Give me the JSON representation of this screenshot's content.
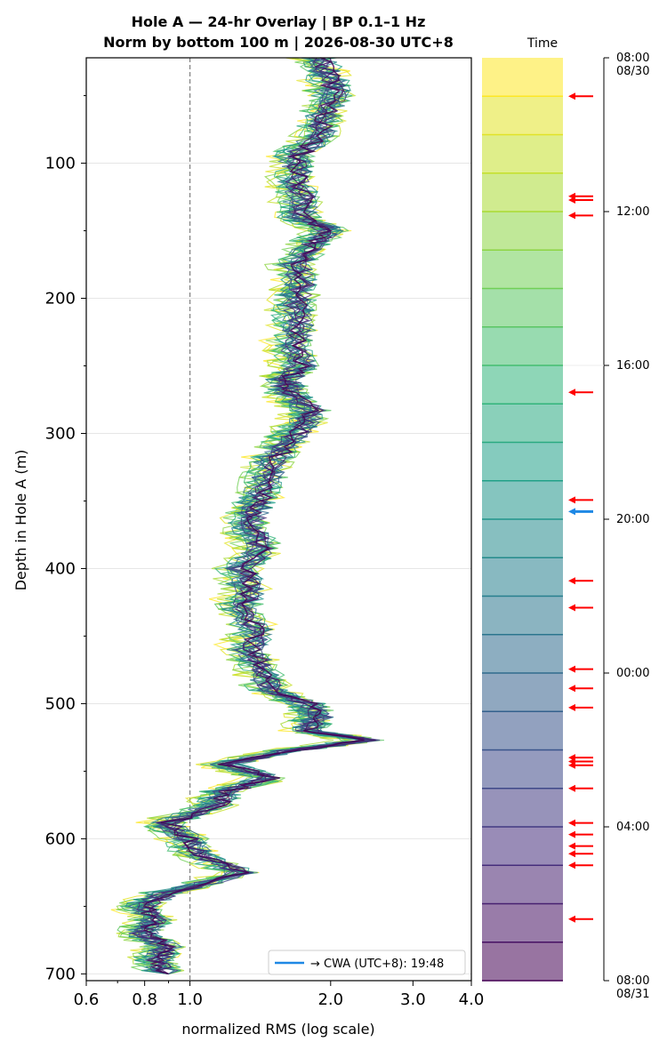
{
  "chart_data": [
    {
      "type": "line",
      "title": "Hole A — 24-hr Overlay  |  BP 0.1–1 Hz",
      "subtitle": "Norm by bottom 100 m  |  2026-08-30 UTC+8",
      "xlabel": "normalized RMS  (log scale)",
      "ylabel": "Depth in Hole A (m)",
      "x_scale": "log",
      "xlim": [
        0.6,
        4.0
      ],
      "ylim": [
        705,
        22
      ],
      "y_inverted": true,
      "x_ticks": [
        "0.6",
        "0.8",
        "1.0",
        "2.0",
        "3.0",
        "4.0"
      ],
      "x_tick_values": [
        0.6,
        0.8,
        1.0,
        2.0,
        3.0,
        4.0
      ],
      "y_ticks": [
        "100",
        "200",
        "300",
        "400",
        "500",
        "600",
        "700"
      ],
      "y_tick_values": [
        100,
        200,
        300,
        400,
        500,
        600,
        700
      ],
      "grid": "horizontal",
      "reference_line": {
        "x": 1.0,
        "style": "dashed",
        "color": "#808080"
      },
      "legend": {
        "placement": "bottom-right",
        "entries": [
          {
            "label": "→ CWA (UTC+8): 19:48",
            "color": "#1e88e5"
          }
        ]
      },
      "series_count": 24,
      "colormap": "viridis",
      "depth_samples": [
        22,
        35,
        50,
        65,
        80,
        95,
        110,
        125,
        140,
        150,
        160,
        175,
        190,
        205,
        220,
        235,
        250,
        260,
        270,
        283,
        295,
        310,
        325,
        340,
        355,
        370,
        385,
        400,
        415,
        430,
        445,
        460,
        475,
        490,
        500,
        510,
        520,
        527,
        535,
        545,
        555,
        565,
        575,
        588,
        600,
        612,
        625,
        640,
        650,
        660,
        670,
        680,
        690,
        700
      ],
      "mean_profile": [
        1.9,
        2.0,
        2.05,
        1.95,
        1.9,
        1.7,
        1.7,
        1.75,
        1.75,
        2.0,
        1.85,
        1.7,
        1.75,
        1.7,
        1.72,
        1.68,
        1.75,
        1.62,
        1.65,
        1.85,
        1.75,
        1.6,
        1.5,
        1.45,
        1.4,
        1.35,
        1.45,
        1.3,
        1.35,
        1.3,
        1.4,
        1.35,
        1.45,
        1.5,
        1.8,
        1.9,
        1.8,
        2.4,
        1.6,
        1.2,
        1.5,
        1.2,
        1.15,
        0.9,
        1.0,
        1.05,
        1.3,
        0.9,
        0.8,
        0.85,
        0.8,
        0.9,
        0.85,
        0.9
      ]
    },
    {
      "type": "heatmap",
      "title": "Time",
      "colormap": "viridis",
      "bands": 24,
      "time_ticks": [
        "08:00\n08/30",
        "12:00",
        "16:00",
        "20:00",
        "00:00",
        "04:00",
        "08:00\n08/31"
      ],
      "time_tick_hours": [
        0,
        4,
        8,
        12,
        16,
        20,
        24
      ],
      "event_arrows_hours": [
        1.0,
        3.6,
        3.7,
        4.1,
        8.7,
        11.5,
        13.6,
        14.3,
        15.9,
        16.4,
        16.9,
        18.2,
        18.3,
        18.4,
        19.0,
        19.9,
        20.2,
        20.5,
        20.7,
        21.0,
        22.4
      ],
      "cwa_arrow_hours": 11.8
    }
  ]
}
